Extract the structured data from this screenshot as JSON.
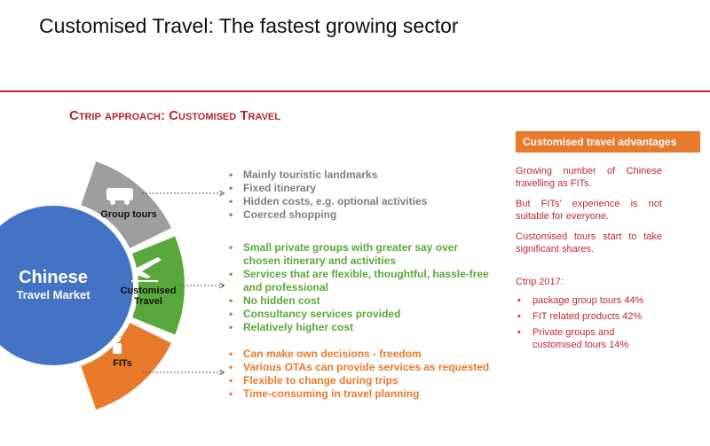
{
  "header": {
    "title": "Customised Travel: The fastest growing sector",
    "subtitle": "Ctrip approach: Customised Travel"
  },
  "center": {
    "line1": "Chinese",
    "line2": "Travel Market"
  },
  "segments": [
    {
      "label": "Group tours",
      "color": "#9e9e9e",
      "text_color": "#7f7f7f",
      "items": [
        "Mainly touristic landmarks",
        "Fixed itinerary",
        "Hidden costs, e.g. optional activities",
        "Coerced shopping"
      ]
    },
    {
      "label": "Customised Travel",
      "color": "#5aa83b",
      "text_color": "#5aa83b",
      "items": [
        "Small private groups with greater say over chosen itinerary and activities",
        "Services that are flexible, thoughtful, hassle-free and professional",
        "No hidden cost",
        "Consultancy services provided",
        "Relatively higher cost"
      ]
    },
    {
      "label": "FITs",
      "color": "#e9792b",
      "text_color": "#e9792b",
      "items": [
        "Can make own decisions - freedom",
        "Various OTAs can provide services as requested",
        "Flexible to change during trips",
        "Time-consuming in travel planning"
      ]
    }
  ],
  "panel": {
    "header": "Customised travel advantages",
    "paragraphs": [
      "Growing number of Chinese travelling as FITs.",
      "But FITs’ experience is not suitable for everyone.",
      "Customised tours start to take significant shares."
    ],
    "list_title": "Ctrip 2017:",
    "list": [
      "package group tours 44%",
      "FIT related products 42%",
      "Private groups and customised tours 14%"
    ]
  }
}
